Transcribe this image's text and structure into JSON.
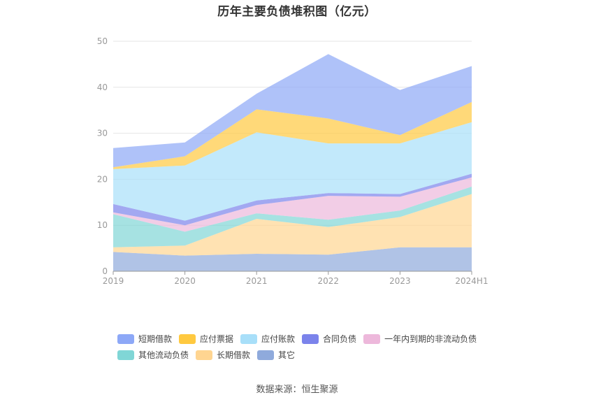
{
  "chart_data": {
    "type": "area",
    "stacked": true,
    "title": "历年主要负债堆积图（亿元）",
    "categories": [
      "2019",
      "2020",
      "2021",
      "2022",
      "2023",
      "2024H1"
    ],
    "ylim": [
      0,
      50
    ],
    "yticks": [
      0,
      10,
      20,
      30,
      40,
      50
    ],
    "grid": true,
    "legend_position": "bottom",
    "series": [
      {
        "name": "其它",
        "color": "#8FAADC",
        "values": [
          4.2,
          3.4,
          3.8,
          3.6,
          5.2,
          5.2
        ]
      },
      {
        "name": "长期借款",
        "color": "#FFD591",
        "values": [
          1.0,
          2.2,
          7.6,
          6.0,
          6.6,
          11.6
        ]
      },
      {
        "name": "其他流动负债",
        "color": "#80D6D6",
        "values": [
          7.2,
          3.0,
          1.2,
          1.6,
          1.4,
          1.6
        ]
      },
      {
        "name": "一年内到期的非流动负债",
        "color": "#EDB8DB",
        "values": [
          0.4,
          1.4,
          1.8,
          5.2,
          3.0,
          2.0
        ]
      },
      {
        "name": "合同负债",
        "color": "#7B83EB",
        "values": [
          1.8,
          1.0,
          1.0,
          0.6,
          0.6,
          0.8
        ]
      },
      {
        "name": "应付账款",
        "color": "#A8DFF9",
        "values": [
          7.6,
          12.0,
          14.8,
          10.8,
          11.0,
          11.2
        ]
      },
      {
        "name": "应付票据",
        "color": "#FFC940",
        "values": [
          0.4,
          2.0,
          5.0,
          5.4,
          1.8,
          4.4
        ]
      },
      {
        "name": "短期借款",
        "color": "#8DA8F7",
        "values": [
          4.2,
          3.0,
          3.4,
          14.0,
          9.8,
          7.8
        ]
      }
    ]
  },
  "legend_rows": [
    [
      "短期借款",
      "应付票据",
      "应付账款",
      "合同负债",
      "一年内到期的非流动负债"
    ],
    [
      "其他流动负债",
      "长期借款",
      "其它"
    ]
  ],
  "source": "数据来源：恒生聚源"
}
